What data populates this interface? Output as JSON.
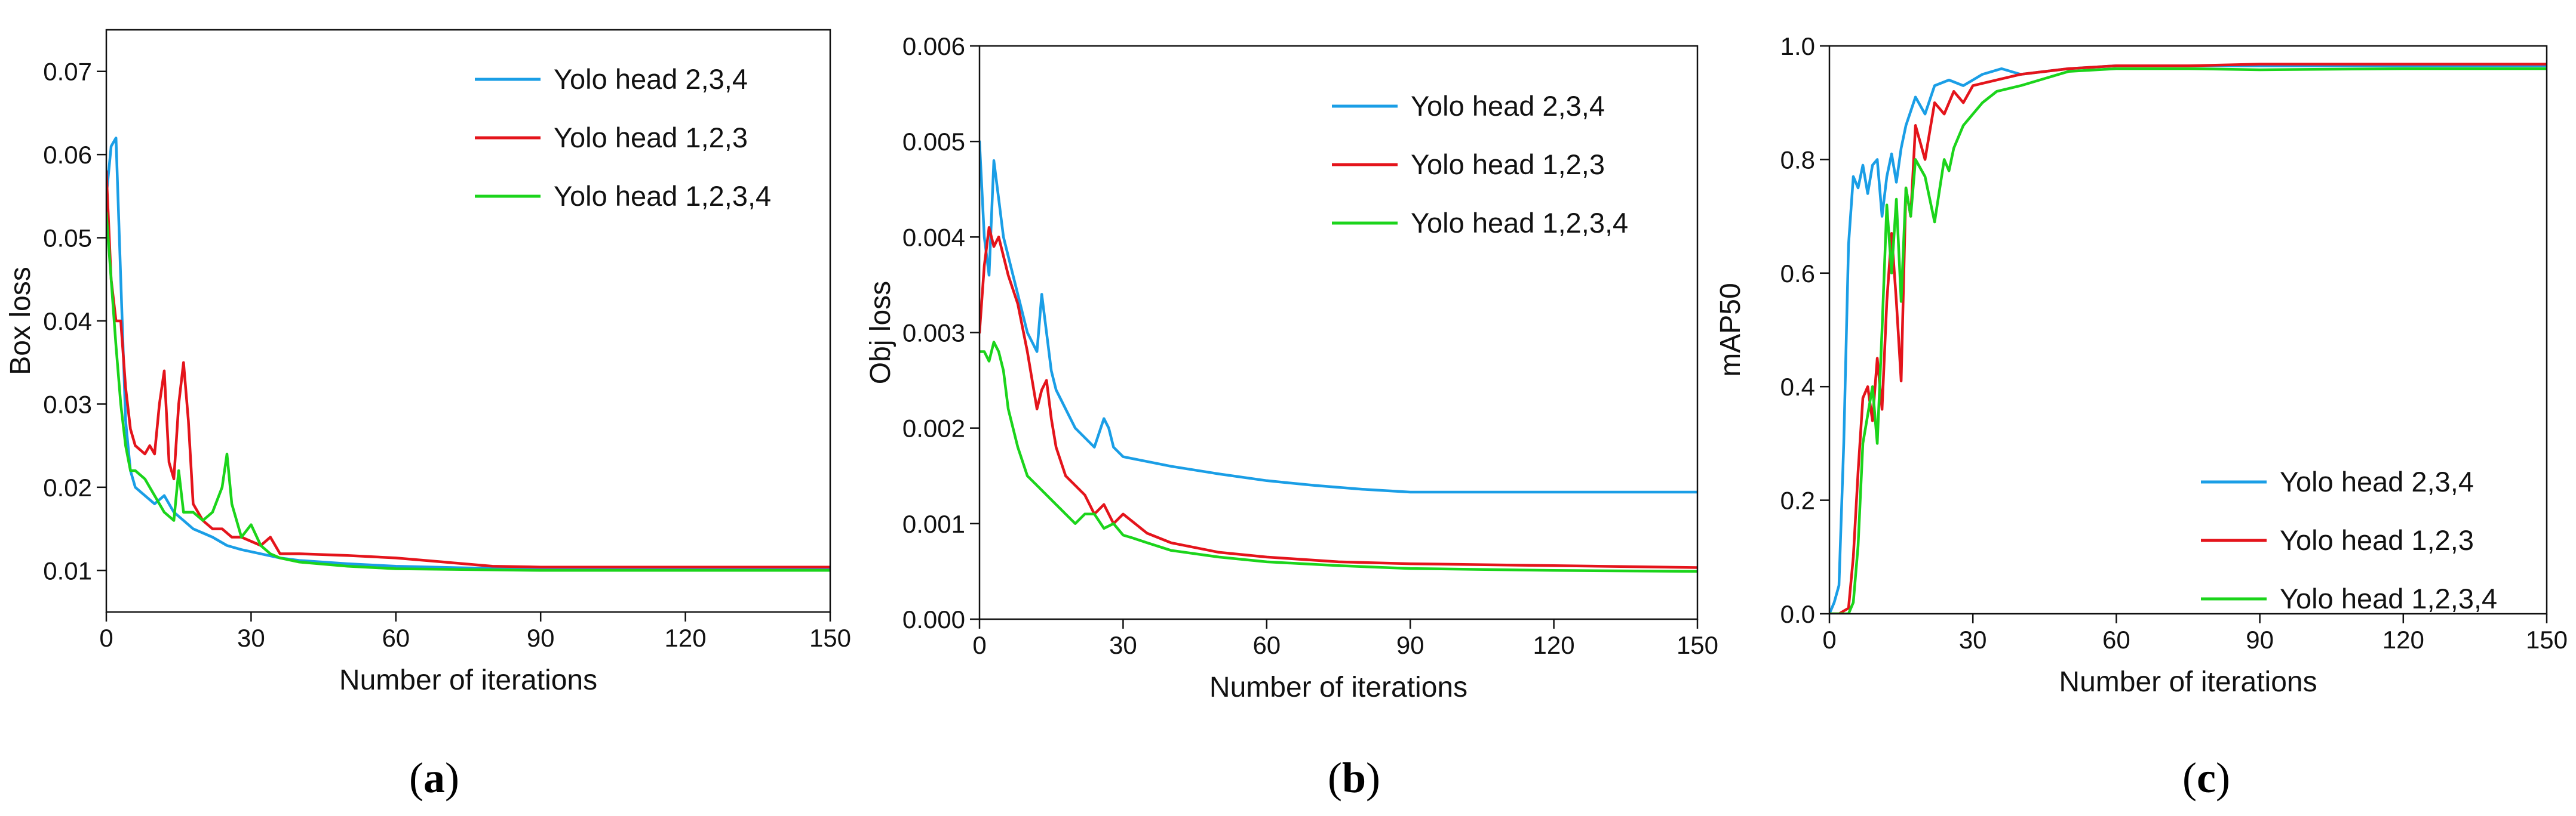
{
  "chart_data": [
    {
      "type": "line",
      "panel_label": "a",
      "title": "",
      "xlabel": "Number of iterations",
      "ylabel": "Box loss",
      "xlim": [
        0,
        150
      ],
      "ylim": [
        0.005,
        0.075
      ],
      "xticks": [
        0,
        30,
        60,
        90,
        120,
        150
      ],
      "yticks": [
        0.01,
        0.02,
        0.03,
        0.04,
        0.05,
        0.06,
        0.07
      ],
      "xtick_labels": [
        "0",
        "30",
        "60",
        "90",
        "120",
        "150"
      ],
      "ytick_labels": [
        "0.01",
        "0.02",
        "0.03",
        "0.04",
        "0.05",
        "0.06",
        "0.07"
      ],
      "legend_position": "top-right",
      "series": [
        {
          "name": "Yolo head 2,3,4",
          "color": "#1a9ee6",
          "x": [
            0,
            1,
            2,
            3,
            4,
            5,
            6,
            8,
            10,
            12,
            14,
            16,
            18,
            20,
            22,
            25,
            28,
            32,
            36,
            40,
            50,
            60,
            75,
            90,
            120,
            150
          ],
          "y": [
            0.055,
            0.061,
            0.062,
            0.045,
            0.028,
            0.022,
            0.02,
            0.019,
            0.018,
            0.019,
            0.017,
            0.016,
            0.015,
            0.0145,
            0.014,
            0.013,
            0.0125,
            0.012,
            0.0115,
            0.0112,
            0.0108,
            0.0105,
            0.0103,
            0.0102,
            0.0101,
            0.0101
          ]
        },
        {
          "name": "Yolo head 1,2,3",
          "color": "#e4141b",
          "x": [
            0,
            1,
            2,
            3,
            4,
            5,
            6,
            8,
            9,
            10,
            11,
            12,
            13,
            14,
            15,
            16,
            17,
            18,
            20,
            22,
            24,
            26,
            28,
            30,
            32,
            34,
            36,
            40,
            50,
            60,
            70,
            80,
            90,
            120,
            150
          ],
          "y": [
            0.058,
            0.045,
            0.04,
            0.04,
            0.032,
            0.027,
            0.025,
            0.024,
            0.025,
            0.024,
            0.03,
            0.034,
            0.023,
            0.021,
            0.03,
            0.035,
            0.028,
            0.018,
            0.016,
            0.015,
            0.015,
            0.014,
            0.014,
            0.0135,
            0.013,
            0.014,
            0.012,
            0.012,
            0.0118,
            0.0115,
            0.011,
            0.0105,
            0.0104,
            0.0104,
            0.0104
          ]
        },
        {
          "name": "Yolo head 1,2,3,4",
          "color": "#1bd41b",
          "x": [
            0,
            1,
            2,
            3,
            4,
            5,
            6,
            8,
            10,
            12,
            14,
            15,
            16,
            18,
            20,
            22,
            24,
            25,
            26,
            28,
            30,
            32,
            34,
            36,
            40,
            50,
            60,
            75,
            90,
            120,
            150
          ],
          "y": [
            0.053,
            0.045,
            0.037,
            0.03,
            0.025,
            0.022,
            0.022,
            0.021,
            0.019,
            0.017,
            0.016,
            0.022,
            0.017,
            0.017,
            0.016,
            0.017,
            0.02,
            0.024,
            0.018,
            0.014,
            0.0155,
            0.013,
            0.012,
            0.0115,
            0.011,
            0.0105,
            0.0102,
            0.0101,
            0.01,
            0.01,
            0.01
          ]
        }
      ]
    },
    {
      "type": "line",
      "panel_label": "b",
      "title": "",
      "xlabel": "Number of iterations",
      "ylabel": "Obj loss",
      "xlim": [
        0,
        150
      ],
      "ylim": [
        0,
        0.006
      ],
      "xticks": [
        0,
        30,
        60,
        90,
        120,
        150
      ],
      "yticks": [
        0,
        0.001,
        0.002,
        0.003,
        0.004,
        0.005,
        0.006
      ],
      "xtick_labels": [
        "0",
        "30",
        "60",
        "90",
        "120",
        "150"
      ],
      "ytick_labels": [
        "0.000",
        "0.001",
        "0.002",
        "0.003",
        "0.004",
        "0.005",
        "0.006"
      ],
      "legend_position": "top-right",
      "series": [
        {
          "name": "Yolo head 2,3,4",
          "color": "#1a9ee6",
          "x": [
            0,
            1,
            2,
            3,
            4,
            5,
            6,
            8,
            10,
            12,
            13,
            14,
            15,
            16,
            18,
            20,
            22,
            24,
            26,
            27,
            28,
            30,
            35,
            40,
            50,
            60,
            70,
            80,
            90,
            120,
            150
          ],
          "y": [
            0.005,
            0.004,
            0.0036,
            0.0048,
            0.0044,
            0.004,
            0.0038,
            0.0034,
            0.003,
            0.0028,
            0.0034,
            0.003,
            0.0026,
            0.0024,
            0.0022,
            0.002,
            0.0019,
            0.0018,
            0.0021,
            0.002,
            0.0018,
            0.0017,
            0.00165,
            0.0016,
            0.00152,
            0.00145,
            0.0014,
            0.00136,
            0.00133,
            0.00133,
            0.00133
          ]
        },
        {
          "name": "Yolo head 1,2,3",
          "color": "#e4141b",
          "x": [
            0,
            1,
            2,
            3,
            4,
            6,
            8,
            10,
            12,
            13,
            14,
            15,
            16,
            18,
            20,
            22,
            24,
            26,
            28,
            30,
            35,
            40,
            50,
            60,
            75,
            90,
            120,
            150
          ],
          "y": [
            0.003,
            0.0037,
            0.0041,
            0.0039,
            0.004,
            0.0036,
            0.0033,
            0.0028,
            0.0022,
            0.0024,
            0.0025,
            0.0021,
            0.0018,
            0.0015,
            0.0014,
            0.0013,
            0.0011,
            0.0012,
            0.001,
            0.0011,
            0.0009,
            0.0008,
            0.0007,
            0.00065,
            0.0006,
            0.00058,
            0.00056,
            0.00054
          ]
        },
        {
          "name": "Yolo head 1,2,3,4",
          "color": "#1bd41b",
          "x": [
            0,
            1,
            2,
            3,
            4,
            5,
            6,
            8,
            10,
            12,
            14,
            16,
            18,
            20,
            22,
            24,
            26,
            28,
            30,
            32,
            35,
            40,
            50,
            60,
            75,
            90,
            120,
            150
          ],
          "y": [
            0.0028,
            0.0028,
            0.0027,
            0.0029,
            0.0028,
            0.0026,
            0.0022,
            0.0018,
            0.0015,
            0.0014,
            0.0013,
            0.0012,
            0.0011,
            0.001,
            0.0011,
            0.0011,
            0.00095,
            0.001,
            0.00088,
            0.00085,
            0.0008,
            0.00072,
            0.00065,
            0.0006,
            0.00056,
            0.00053,
            0.00051,
            0.0005
          ]
        }
      ]
    },
    {
      "type": "line",
      "panel_label": "c",
      "title": "",
      "xlabel": "Number of iterations",
      "ylabel": "mAP50",
      "xlim": [
        0,
        150
      ],
      "ylim": [
        0,
        1.0
      ],
      "xticks": [
        0,
        30,
        60,
        90,
        120,
        150
      ],
      "yticks": [
        0,
        0.2,
        0.4,
        0.6,
        0.8,
        1.0
      ],
      "xtick_labels": [
        "0",
        "30",
        "60",
        "90",
        "120",
        "150"
      ],
      "ytick_labels": [
        "0.0",
        "0.2",
        "0.4",
        "0.6",
        "0.8",
        "1.0"
      ],
      "legend_position": "bottom-right",
      "series": [
        {
          "name": "Yolo head 2,3,4",
          "color": "#1a9ee6",
          "x": [
            0,
            1,
            2,
            3,
            4,
            5,
            6,
            7,
            8,
            9,
            10,
            11,
            12,
            13,
            14,
            15,
            16,
            18,
            20,
            22,
            25,
            28,
            32,
            36,
            40,
            50,
            60,
            75,
            90,
            120,
            150
          ],
          "y": [
            0.0,
            0.02,
            0.05,
            0.3,
            0.65,
            0.77,
            0.75,
            0.79,
            0.74,
            0.79,
            0.8,
            0.7,
            0.77,
            0.81,
            0.76,
            0.82,
            0.86,
            0.91,
            0.88,
            0.93,
            0.94,
            0.93,
            0.95,
            0.96,
            0.95,
            0.96,
            0.965,
            0.965,
            0.965,
            0.965,
            0.965
          ]
        },
        {
          "name": "Yolo head 1,2,3",
          "color": "#e4141b",
          "x": [
            0,
            2,
            4,
            5,
            6,
            7,
            8,
            9,
            10,
            11,
            12,
            13,
            14,
            15,
            16,
            17,
            18,
            20,
            22,
            24,
            26,
            28,
            30,
            35,
            40,
            50,
            60,
            75,
            90,
            120,
            150
          ],
          "y": [
            0.0,
            0.0,
            0.01,
            0.1,
            0.25,
            0.38,
            0.4,
            0.34,
            0.45,
            0.36,
            0.55,
            0.67,
            0.55,
            0.41,
            0.75,
            0.7,
            0.86,
            0.8,
            0.9,
            0.88,
            0.92,
            0.9,
            0.93,
            0.94,
            0.95,
            0.96,
            0.965,
            0.965,
            0.968,
            0.968,
            0.968
          ]
        },
        {
          "name": "Yolo head 1,2,3,4",
          "color": "#1bd41b",
          "x": [
            0,
            4,
            5,
            6,
            7,
            8,
            9,
            10,
            11,
            12,
            13,
            14,
            15,
            16,
            17,
            18,
            20,
            22,
            24,
            25,
            26,
            28,
            30,
            32,
            35,
            40,
            50,
            60,
            75,
            90,
            120,
            150
          ],
          "y": [
            0.0,
            0.0,
            0.02,
            0.12,
            0.3,
            0.35,
            0.4,
            0.3,
            0.5,
            0.72,
            0.6,
            0.73,
            0.55,
            0.75,
            0.7,
            0.8,
            0.77,
            0.69,
            0.8,
            0.78,
            0.82,
            0.86,
            0.88,
            0.9,
            0.92,
            0.93,
            0.955,
            0.96,
            0.96,
            0.958,
            0.96,
            0.96
          ]
        }
      ]
    }
  ]
}
